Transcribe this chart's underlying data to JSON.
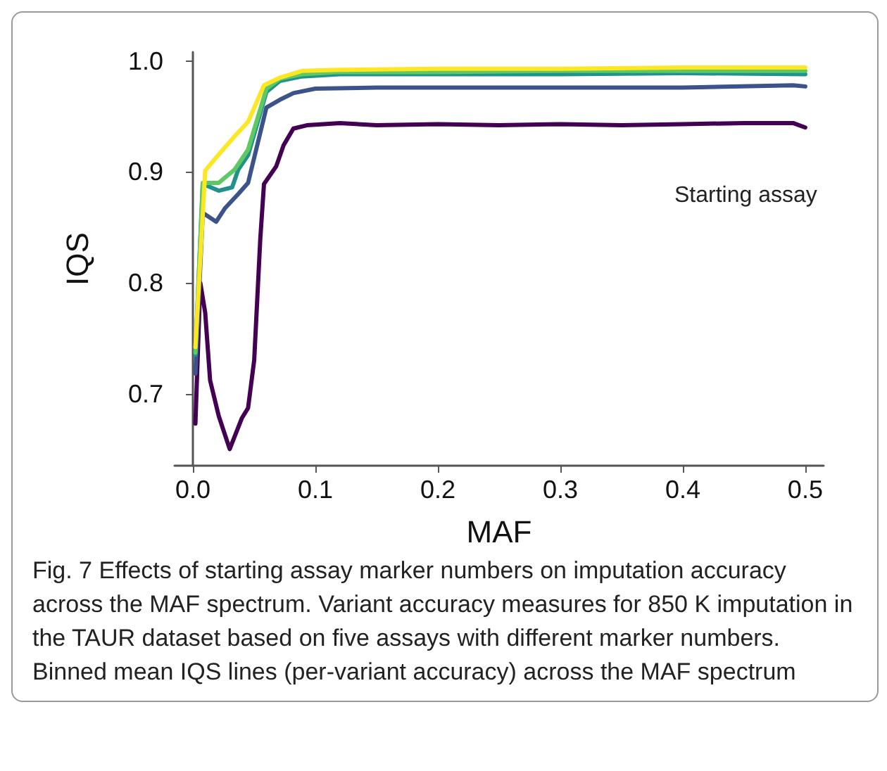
{
  "chart_data": {
    "type": "line",
    "xlabel": "MAF",
    "ylabel": "IQS",
    "legend_title": "Starting assay",
    "xlim": [
      -0.015,
      0.515
    ],
    "ylim": [
      0.635,
      1.008
    ],
    "xticks": [
      {
        "value": 0,
        "label": "0.0"
      },
      0.1,
      0.2,
      0.3,
      0.4,
      0.5
    ],
    "yticks": [
      0.7,
      0.8,
      0.9,
      {
        "value": 1,
        "label": "1.0"
      }
    ],
    "grid": false,
    "marker": "none",
    "line_style": "solid",
    "annotations": [
      "Fig. 7 Effects of starting assay marker numbers on imputation accuracy across the MAF spectrum. Variant accuracy measures for 850 K imputation in the TAUR dataset based on five assays with different marker numbers. Binned mean IQS lines (per-variant accuracy) across the MAF spectrum"
    ],
    "series": [
      {
        "color": "#440154",
        "x": [
          0.002,
          0.006,
          0.01,
          0.014,
          0.021,
          0.03,
          0.04,
          0.045,
          0.05,
          0.055,
          0.058,
          0.068,
          0.074,
          0.082,
          0.093,
          0.12,
          0.15,
          0.2,
          0.25,
          0.3,
          0.35,
          0.4,
          0.45,
          0.49,
          0.5
        ],
        "values": [
          0.673,
          0.8,
          0.773,
          0.712,
          0.68,
          0.65,
          0.678,
          0.687,
          0.73,
          0.84,
          0.889,
          0.905,
          0.924,
          0.939,
          0.942,
          0.944,
          0.942,
          0.943,
          0.942,
          0.943,
          0.942,
          0.943,
          0.944,
          0.944,
          0.94
        ]
      },
      {
        "color": "#3b528b",
        "x": [
          0.002,
          0.008,
          0.019,
          0.026,
          0.037,
          0.045,
          0.06,
          0.071,
          0.082,
          0.1,
          0.15,
          0.2,
          0.3,
          0.4,
          0.49,
          0.5
        ],
        "values": [
          0.718,
          0.863,
          0.855,
          0.867,
          0.88,
          0.89,
          0.958,
          0.965,
          0.971,
          0.975,
          0.976,
          0.976,
          0.976,
          0.976,
          0.978,
          0.977
        ]
      },
      {
        "color": "#21918c",
        "x": [
          0.002,
          0.008,
          0.021,
          0.032,
          0.037,
          0.045,
          0.06,
          0.071,
          0.089,
          0.12,
          0.2,
          0.3,
          0.4,
          0.5
        ],
        "values": [
          0.735,
          0.889,
          0.883,
          0.886,
          0.902,
          0.915,
          0.972,
          0.982,
          0.986,
          0.988,
          0.988,
          0.988,
          0.989,
          0.988
        ]
      },
      {
        "color": "#5ec962",
        "x": [
          0.002,
          0.008,
          0.021,
          0.034,
          0.045,
          0.06,
          0.071,
          0.089,
          0.12,
          0.2,
          0.3,
          0.4,
          0.5
        ],
        "values": [
          0.737,
          0.89,
          0.89,
          0.902,
          0.92,
          0.975,
          0.984,
          0.988,
          0.99,
          0.99,
          0.991,
          0.991,
          0.991
        ]
      },
      {
        "color": "#fde725",
        "x": [
          0.002,
          0.01,
          0.019,
          0.034,
          0.045,
          0.058,
          0.071,
          0.089,
          0.12,
          0.2,
          0.3,
          0.4,
          0.5
        ],
        "values": [
          0.742,
          0.901,
          0.913,
          0.932,
          0.945,
          0.978,
          0.985,
          0.991,
          0.992,
          0.993,
          0.993,
          0.994,
          0.994
        ]
      }
    ]
  }
}
